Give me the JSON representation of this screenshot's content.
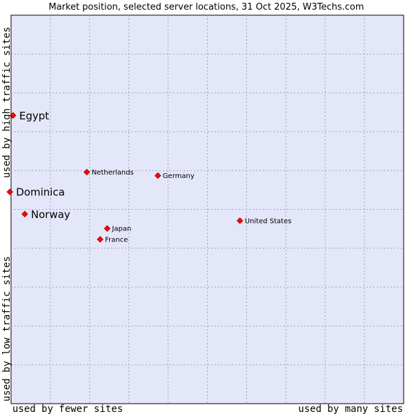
{
  "chart_data": {
    "type": "scatter",
    "title": "Market position, selected server locations, 31 Oct 2025, W3Techs.com",
    "xlabel_left": "used by fewer sites",
    "xlabel_right": "used by many sites",
    "ylabel_bottom": "used by low traffic sites",
    "ylabel_top": "used by high traffic sites",
    "xlim": [
      0,
      100
    ],
    "ylim": [
      0,
      100
    ],
    "grid": true,
    "points": [
      {
        "label": "Egypt",
        "x": 0.5,
        "y": 74.2,
        "highlight": true
      },
      {
        "label": "Dominica",
        "x": -0.3,
        "y": 54.5,
        "highlight": true
      },
      {
        "label": "Norway",
        "x": 3.5,
        "y": 48.8,
        "highlight": true
      },
      {
        "label": "Netherlands",
        "x": 19.3,
        "y": 59.6,
        "highlight": false
      },
      {
        "label": "Germany",
        "x": 37.4,
        "y": 58.7,
        "highlight": false
      },
      {
        "label": "United States",
        "x": 58.3,
        "y": 47.1,
        "highlight": false
      },
      {
        "label": "Japan",
        "x": 24.5,
        "y": 45.1,
        "highlight": false
      },
      {
        "label": "France",
        "x": 22.7,
        "y": 42.3,
        "highlight": false
      }
    ]
  },
  "colors": {
    "plot_bg": "#e4e6fa",
    "grid": "#a0a0b8",
    "marker": "#ff0000",
    "marker_edge": "#990000"
  }
}
